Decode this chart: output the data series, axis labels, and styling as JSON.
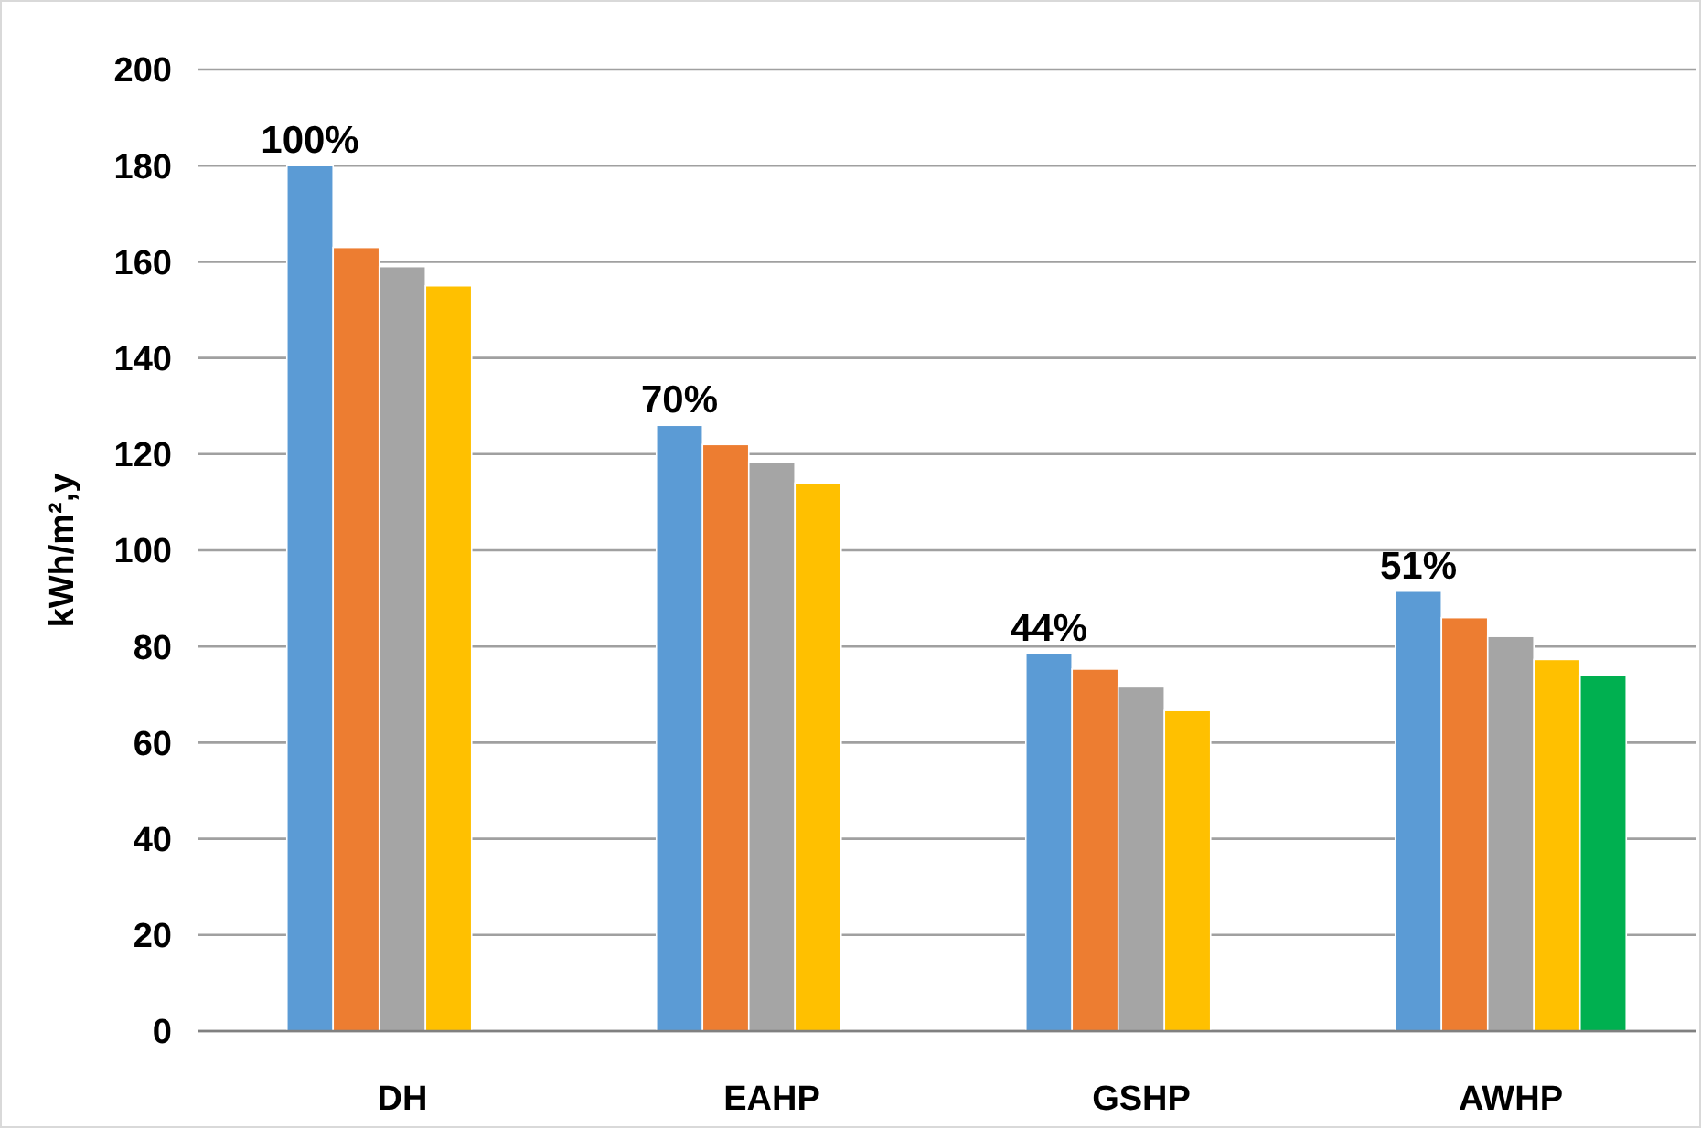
{
  "chart_data": {
    "type": "bar",
    "ylabel": "kWh/m²,y",
    "categories": [
      "DH",
      "EAHP",
      "GSHP",
      "AWHP"
    ],
    "series": [
      {
        "color": "#5b9bd5",
        "values": [
          180,
          126,
          78.5,
          91.5
        ]
      },
      {
        "color": "#ed7d31",
        "values": [
          163,
          122,
          75.3,
          86
        ]
      },
      {
        "color": "#a5a5a5",
        "values": [
          159,
          118.4,
          71.6,
          82.1
        ]
      },
      {
        "color": "#ffc000",
        "values": [
          155,
          114,
          66.7,
          77.3
        ]
      },
      {
        "color": "#00b050",
        "values": [
          null,
          null,
          null,
          74
        ]
      }
    ],
    "ylim": [
      0,
      200
    ],
    "yticks": [
      0,
      20,
      40,
      60,
      80,
      100,
      120,
      140,
      160,
      180,
      200
    ],
    "grid": "y",
    "annotations": [
      "100%",
      "70%",
      "44%",
      "51%"
    ]
  }
}
